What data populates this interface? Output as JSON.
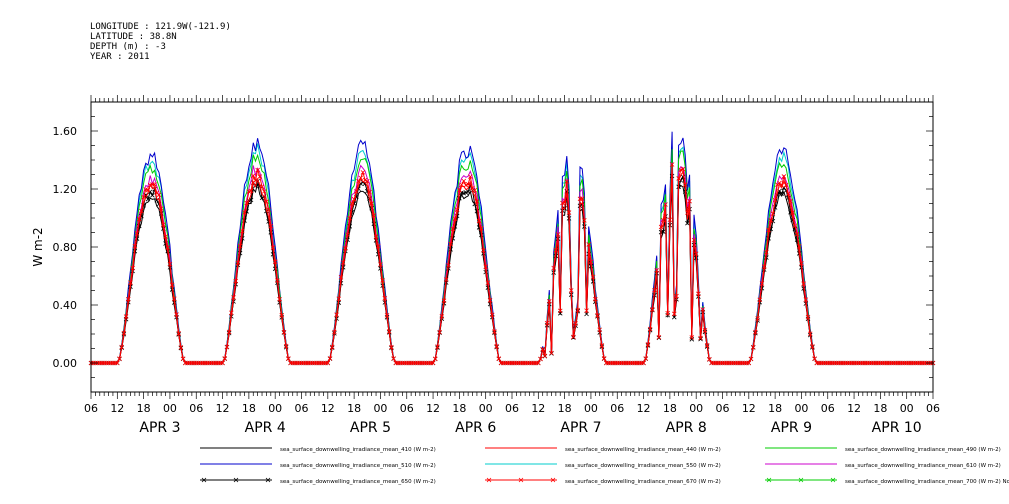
{
  "header": {
    "longitude": "LONGITUDE : 121.9W(-121.9)",
    "latitude": "LATITUDE : 38.8N",
    "depth": "DEPTH (m) : -3",
    "year": "YEAR : 2011"
  },
  "chart_data": {
    "type": "line",
    "ylabel": "W m-2",
    "xlabel": "",
    "ylim": [
      -0.2,
      1.8
    ],
    "yticks": [
      0.0,
      0.4,
      0.8,
      1.2,
      1.6
    ],
    "ytick_labels": [
      "0.00",
      "0.40",
      "0.80",
      "1.20",
      "1.60"
    ],
    "x_start_hour": 0,
    "x_end_hour": 192,
    "x_unit": "hours since APR 2 06:00",
    "hour_tick_labels": [
      "06",
      "12",
      "18",
      "00",
      "06",
      "12",
      "18",
      "00",
      "06",
      "12",
      "18",
      "00",
      "06",
      "12",
      "18",
      "00",
      "06",
      "12",
      "18",
      "00",
      "06",
      "12",
      "18",
      "00",
      "06",
      "12",
      "18",
      "00",
      "06",
      "12",
      "18",
      "00",
      "06"
    ],
    "day_labels": [
      "APR 3",
      "APR 4",
      "APR 5",
      "APR 6",
      "APR 7",
      "APR 8",
      "APR 9",
      "APR 10"
    ],
    "grid": false,
    "legend_position": "bottom",
    "days": [
      {
        "day": "APR 3",
        "peak_440": 1.22
      },
      {
        "day": "APR 4",
        "peak_440": 1.27
      },
      {
        "day": "APR 5",
        "peak_440": 1.25
      },
      {
        "day": "APR 6",
        "peak_440": 1.25
      },
      {
        "day": "APR 7",
        "peak_440": 1.26,
        "cloudy": true
      },
      {
        "day": "APR 8",
        "peak_440": 1.4,
        "cloudy": true
      },
      {
        "day": "APR 9",
        "peak_440": 1.22
      }
    ],
    "series": [
      {
        "name": "sea_surface_downwelling_irradiance_mean_410 (W m-2)",
        "color": "#000000",
        "ratio": 0.95,
        "marker": "none"
      },
      {
        "name": "sea_surface_downwelling_irradiance_mean_440 (W m-2)",
        "color": "#ff0000",
        "ratio": 1.0,
        "marker": "none"
      },
      {
        "name": "sea_surface_downwelling_irradiance_mean_490 (W m-2)",
        "color": "#00cc00",
        "ratio": 1.12,
        "marker": "none"
      },
      {
        "name": "sea_surface_downwelling_irradiance_mean_510 (W m-2)",
        "color": "#0000cc",
        "ratio": 1.2,
        "marker": "none"
      },
      {
        "name": "sea_surface_downwelling_irradiance_mean_550 (W m-2)",
        "color": "#00cccc",
        "ratio": 1.16,
        "marker": "none"
      },
      {
        "name": "sea_surface_downwelling_irradiance_mean_610 (W m-2)",
        "color": "#cc00cc",
        "ratio": 1.06,
        "marker": "none"
      },
      {
        "name": "sea_surface_downwelling_irradiance_mean_650 (W m-2)",
        "color": "#000000",
        "ratio": 0.98,
        "marker": "x"
      },
      {
        "name": "sea_surface_downwelling_irradiance_mean_670 (W m-2)",
        "color": "#ff0000",
        "ratio": 1.03,
        "marker": "x"
      },
      {
        "name": "sea_surface_downwelling_irradiance_mean_700 (W m-2) No Valid Data",
        "color": "#00cc00",
        "ratio": 0,
        "marker": "x",
        "no_data": true
      }
    ]
  }
}
